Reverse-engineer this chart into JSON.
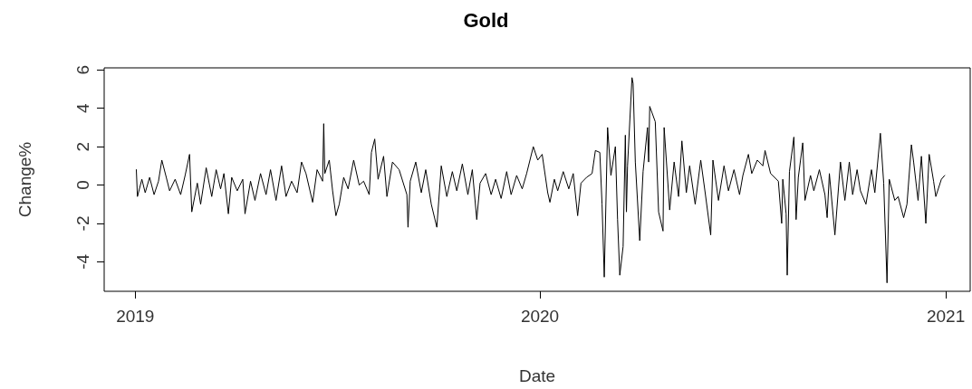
{
  "chart_data": {
    "type": "line",
    "title": "Gold",
    "xlabel": "Date",
    "ylabel": "Change%",
    "color": "#000000",
    "xlim": [
      "2018-12-04",
      "2021-01-23"
    ],
    "xticks": [
      "2019",
      "2020",
      "2021"
    ],
    "ylim": [
      -5.54,
      6.11
    ],
    "yticks": [
      -4,
      -2,
      0,
      2,
      4,
      6
    ],
    "x": [
      "2019-01-02",
      "2019-01-03",
      "2019-01-07",
      "2019-01-10",
      "2019-01-14",
      "2019-01-18",
      "2019-01-22",
      "2019-01-25",
      "2019-01-29",
      "2019-02-01",
      "2019-02-06",
      "2019-02-11",
      "2019-02-15",
      "2019-02-19",
      "2019-02-21",
      "2019-02-26",
      "2019-03-01",
      "2019-03-06",
      "2019-03-11",
      "2019-03-15",
      "2019-03-19",
      "2019-03-22",
      "2019-03-26",
      "2019-03-29",
      "2019-04-03",
      "2019-04-08",
      "2019-04-10",
      "2019-04-15",
      "2019-04-19",
      "2019-04-24",
      "2019-04-29",
      "2019-05-03",
      "2019-05-08",
      "2019-05-13",
      "2019-05-17",
      "2019-05-22",
      "2019-05-27",
      "2019-05-31",
      "2019-06-04",
      "2019-06-10",
      "2019-06-14",
      "2019-06-19",
      "2019-06-20",
      "2019-06-21",
      "2019-06-25",
      "2019-06-28",
      "2019-07-01",
      "2019-07-04",
      "2019-07-08",
      "2019-07-12",
      "2019-07-17",
      "2019-07-22",
      "2019-07-26",
      "2019-07-31",
      "2019-08-02",
      "2019-08-05",
      "2019-08-08",
      "2019-08-13",
      "2019-08-16",
      "2019-08-21",
      "2019-08-27",
      "2019-09-03",
      "2019-09-04",
      "2019-09-06",
      "2019-09-11",
      "2019-09-16",
      "2019-09-20",
      "2019-09-25",
      "2019-09-30",
      "2019-10-04",
      "2019-10-09",
      "2019-10-14",
      "2019-10-18",
      "2019-10-23",
      "2019-10-28",
      "2019-11-01",
      "2019-11-05",
      "2019-11-08",
      "2019-11-13",
      "2019-11-18",
      "2019-11-22",
      "2019-11-27",
      "2019-12-02",
      "2019-12-06",
      "2019-12-11",
      "2019-12-16",
      "2019-12-20",
      "2019-12-26",
      "2019-12-30",
      "2020-01-03",
      "2020-01-08",
      "2020-01-10",
      "2020-01-14",
      "2020-01-17",
      "2020-01-22",
      "2020-01-27",
      "2020-01-31",
      "2020-02-04",
      "2020-02-07",
      "2020-02-12",
      "2020-02-17",
      "2020-02-20",
      "2020-02-24",
      "2020-02-26",
      "2020-02-28",
      "2020-03-02",
      "2020-03-05",
      "2020-03-09",
      "2020-03-11",
      "2020-03-13",
      "2020-03-16",
      "2020-03-18",
      "2020-03-19",
      "2020-03-20",
      "2020-03-24",
      "2020-03-25",
      "2020-03-27",
      "2020-03-31",
      "2020-04-03",
      "2020-04-07",
      "2020-04-08",
      "2020-04-09",
      "2020-04-14",
      "2020-04-17",
      "2020-04-21",
      "2020-04-22",
      "2020-04-27",
      "2020-05-01",
      "2020-05-05",
      "2020-05-08",
      "2020-05-12",
      "2020-05-15",
      "2020-05-20",
      "2020-05-25",
      "2020-05-29",
      "2020-06-03",
      "2020-06-05",
      "2020-06-10",
      "2020-06-15",
      "2020-06-19",
      "2020-06-24",
      "2020-06-29",
      "2020-07-02",
      "2020-07-07",
      "2020-07-10",
      "2020-07-15",
      "2020-07-20",
      "2020-07-22",
      "2020-07-27",
      "2020-08-03",
      "2020-08-06",
      "2020-08-07",
      "2020-08-10",
      "2020-08-11",
      "2020-08-13",
      "2020-08-17",
      "2020-08-19",
      "2020-08-21",
      "2020-08-25",
      "2020-08-27",
      "2020-09-01",
      "2020-09-04",
      "2020-09-09",
      "2020-09-14",
      "2020-09-16",
      "2020-09-18",
      "2020-09-23",
      "2020-09-28",
      "2020-10-02",
      "2020-10-06",
      "2020-10-09",
      "2020-10-13",
      "2020-10-16",
      "2020-10-21",
      "2020-10-26",
      "2020-10-29",
      "2020-11-03",
      "2020-11-06",
      "2020-11-09",
      "2020-11-11",
      "2020-11-16",
      "2020-11-19",
      "2020-11-24",
      "2020-11-27",
      "2020-12-01",
      "2020-12-03",
      "2020-12-07",
      "2020-12-10",
      "2020-12-14",
      "2020-12-17",
      "2020-12-21",
      "2020-12-23",
      "2020-12-28",
      "2020-12-31"
    ],
    "values": [
      0.8,
      -0.6,
      0.3,
      -0.4,
      0.4,
      -0.5,
      0.2,
      1.3,
      0.4,
      -0.3,
      0.3,
      -0.5,
      0.5,
      1.6,
      -1.4,
      0.1,
      -1.0,
      0.9,
      -0.6,
      0.8,
      -0.2,
      0.6,
      -1.5,
      0.4,
      -0.3,
      0.3,
      -1.5,
      0.2,
      -0.8,
      0.6,
      -0.5,
      0.8,
      -0.8,
      1.0,
      -0.6,
      0.2,
      -0.4,
      1.2,
      0.6,
      -0.9,
      0.8,
      0.2,
      3.2,
      0.6,
      1.3,
      -0.3,
      -1.6,
      -1.0,
      0.4,
      -0.2,
      1.3,
      0.0,
      0.2,
      -0.5,
      1.7,
      2.4,
      0.3,
      1.5,
      -0.6,
      1.2,
      0.8,
      -0.5,
      -2.2,
      0.2,
      1.2,
      -0.4,
      0.8,
      -1.0,
      -2.2,
      1.0,
      -0.6,
      0.7,
      -0.3,
      1.1,
      -0.5,
      0.8,
      -1.8,
      0.1,
      0.6,
      -0.5,
      0.3,
      -0.7,
      0.7,
      -0.5,
      0.5,
      -0.2,
      0.6,
      2.0,
      1.3,
      1.6,
      -0.4,
      -0.9,
      0.3,
      -0.3,
      0.7,
      -0.2,
      0.6,
      -1.6,
      0.1,
      0.4,
      0.6,
      1.8,
      1.7,
      -1.0,
      -4.8,
      3.0,
      0.5,
      2.0,
      -1.8,
      -4.7,
      -3.2,
      2.6,
      -1.4,
      1.0,
      5.6,
      5.3,
      1.2,
      -2.9,
      0.7,
      3.0,
      1.2,
      4.1,
      3.3,
      -1.4,
      -2.4,
      3.0,
      -1.3,
      1.2,
      -0.6,
      2.3,
      -0.4,
      1.0,
      -1.0,
      1.3,
      -0.4,
      -2.6,
      1.3,
      -0.8,
      1.0,
      -0.3,
      0.8,
      -0.5,
      0.5,
      1.6,
      0.6,
      1.3,
      1.0,
      1.8,
      0.6,
      0.2,
      -2.0,
      0.3,
      -1.5,
      -4.7,
      0.7,
      2.5,
      -1.8,
      0.4,
      2.2,
      -0.8,
      0.5,
      -0.3,
      0.8,
      -0.5,
      -1.7,
      0.6,
      -2.6,
      1.2,
      -0.8,
      1.2,
      -0.5,
      0.8,
      -0.3,
      -1.0,
      0.8,
      -0.4,
      2.7,
      0.1,
      -5.1,
      0.3,
      -0.8,
      -0.6,
      -1.7,
      -1.0,
      2.1,
      1.2,
      -0.8,
      1.5,
      -2.0,
      1.6,
      0.2,
      -0.6,
      0.3,
      0.5
    ]
  }
}
